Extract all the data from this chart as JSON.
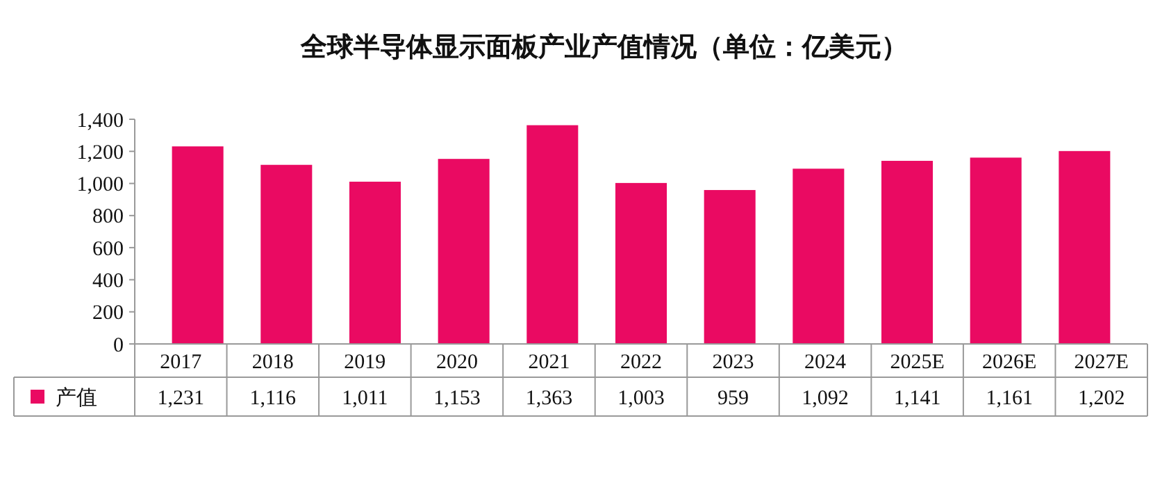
{
  "chart_data": {
    "type": "bar",
    "title": "全球半导体显示面板产业产值情况（单位：亿美元）",
    "categories": [
      "2017",
      "2018",
      "2019",
      "2020",
      "2021",
      "2022",
      "2023",
      "2024",
      "2025E",
      "2026E",
      "2027E"
    ],
    "series": [
      {
        "name": "产值",
        "color": "#ea0a62",
        "values": [
          1231,
          1116,
          1011,
          1153,
          1363,
          1003,
          959,
          1092,
          1141,
          1161,
          1202
        ],
        "value_labels": [
          "1,231",
          "1,116",
          "1,011",
          "1,153",
          "1,363",
          "1,003",
          "959",
          "1,092",
          "1,141",
          "1,161",
          "1,202"
        ]
      }
    ],
    "ylim": [
      0,
      1400
    ],
    "yticks": [
      0,
      {
        "value": 200,
        "label": "200"
      },
      {
        "value": 400,
        "label": "400"
      },
      {
        "value": 600,
        "label": "600"
      },
      {
        "value": 800,
        "label": "800"
      },
      {
        "value": 1000,
        "label": "1,000"
      },
      {
        "value": 1200,
        "label": "1,200"
      },
      {
        "value": 1400,
        "label": "1,400"
      }
    ],
    "grid": false,
    "legend": "bottom"
  }
}
